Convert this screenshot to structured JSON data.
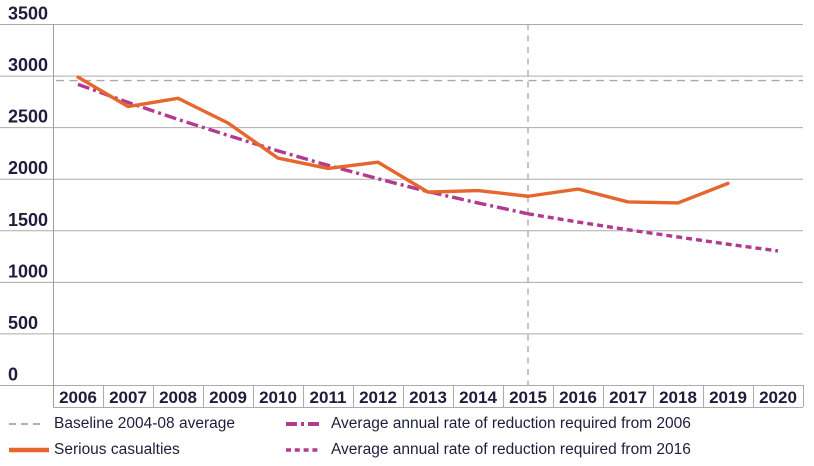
{
  "chart_data": {
    "type": "line",
    "title": "",
    "categories": [
      "2006",
      "2007",
      "2008",
      "2009",
      "2010",
      "2011",
      "2012",
      "2013",
      "2014",
      "2015",
      "2016",
      "2017",
      "2018",
      "2019",
      "2020"
    ],
    "y_ticks": [
      0,
      500,
      1000,
      1500,
      2000,
      2500,
      3000,
      3500
    ],
    "ylim": [
      0,
      3500
    ],
    "grid": "horizontal",
    "legend_position": "bottom",
    "series": [
      {
        "name": "Serious casualties",
        "color": "#e5672e",
        "dash": "solid",
        "x": [
          "2006",
          "2007",
          "2008",
          "2009",
          "2010",
          "2011",
          "2012",
          "2013",
          "2014",
          "2015",
          "2016",
          "2017",
          "2018",
          "2019"
        ],
        "values": [
          2985,
          2700,
          2780,
          2540,
          2200,
          2100,
          2160,
          1870,
          1885,
          1830,
          1900,
          1775,
          1765,
          1955
        ]
      },
      {
        "name": "Average annual rate of reduction required from 2006",
        "color": "#b23a8f",
        "dash": "dash-dot",
        "x": [
          "2006",
          "2007",
          "2008",
          "2009",
          "2010",
          "2011",
          "2012",
          "2013",
          "2014",
          "2015"
        ],
        "values": [
          2915,
          2740,
          2575,
          2420,
          2270,
          2130,
          2000,
          1875,
          1765,
          1660
        ]
      },
      {
        "name": "Average annual rate of reduction required from 2016",
        "color": "#b23a8f",
        "dash": "dotted",
        "x": [
          "2015",
          "2016",
          "2017",
          "2018",
          "2019",
          "2020"
        ],
        "values": [
          1660,
          1580,
          1505,
          1435,
          1365,
          1300
        ]
      }
    ],
    "baseline": {
      "label": "Baseline 2004-08 average",
      "value": 2952,
      "color": "#a8a8a8",
      "dash": "dashed"
    },
    "vertical_marker": {
      "x": "2015",
      "color": "#a8a8a8",
      "dash": "dashed"
    }
  },
  "legend": {
    "items": [
      {
        "id": "baseline",
        "label": "Baseline 2004-08 average",
        "swatch": "dashed",
        "color": "#a8a8a8"
      },
      {
        "id": "from2006",
        "label": "Average annual rate of reduction required from 2006",
        "swatch": "dash-dot",
        "color": "#b23a8f"
      },
      {
        "id": "serious",
        "label": "Serious casualties",
        "swatch": "solid",
        "color": "#e5672e"
      },
      {
        "id": "from2016",
        "label": "Average annual rate of reduction required from 2016",
        "swatch": "dotted",
        "color": "#b23a8f"
      }
    ]
  },
  "colors": {
    "text": "#1e1e3c",
    "grid": "#ababab",
    "axis": "#9e9e9e",
    "orange": "#e5672e",
    "magenta": "#b23a8f",
    "reference_gray": "#a8a8a8"
  }
}
